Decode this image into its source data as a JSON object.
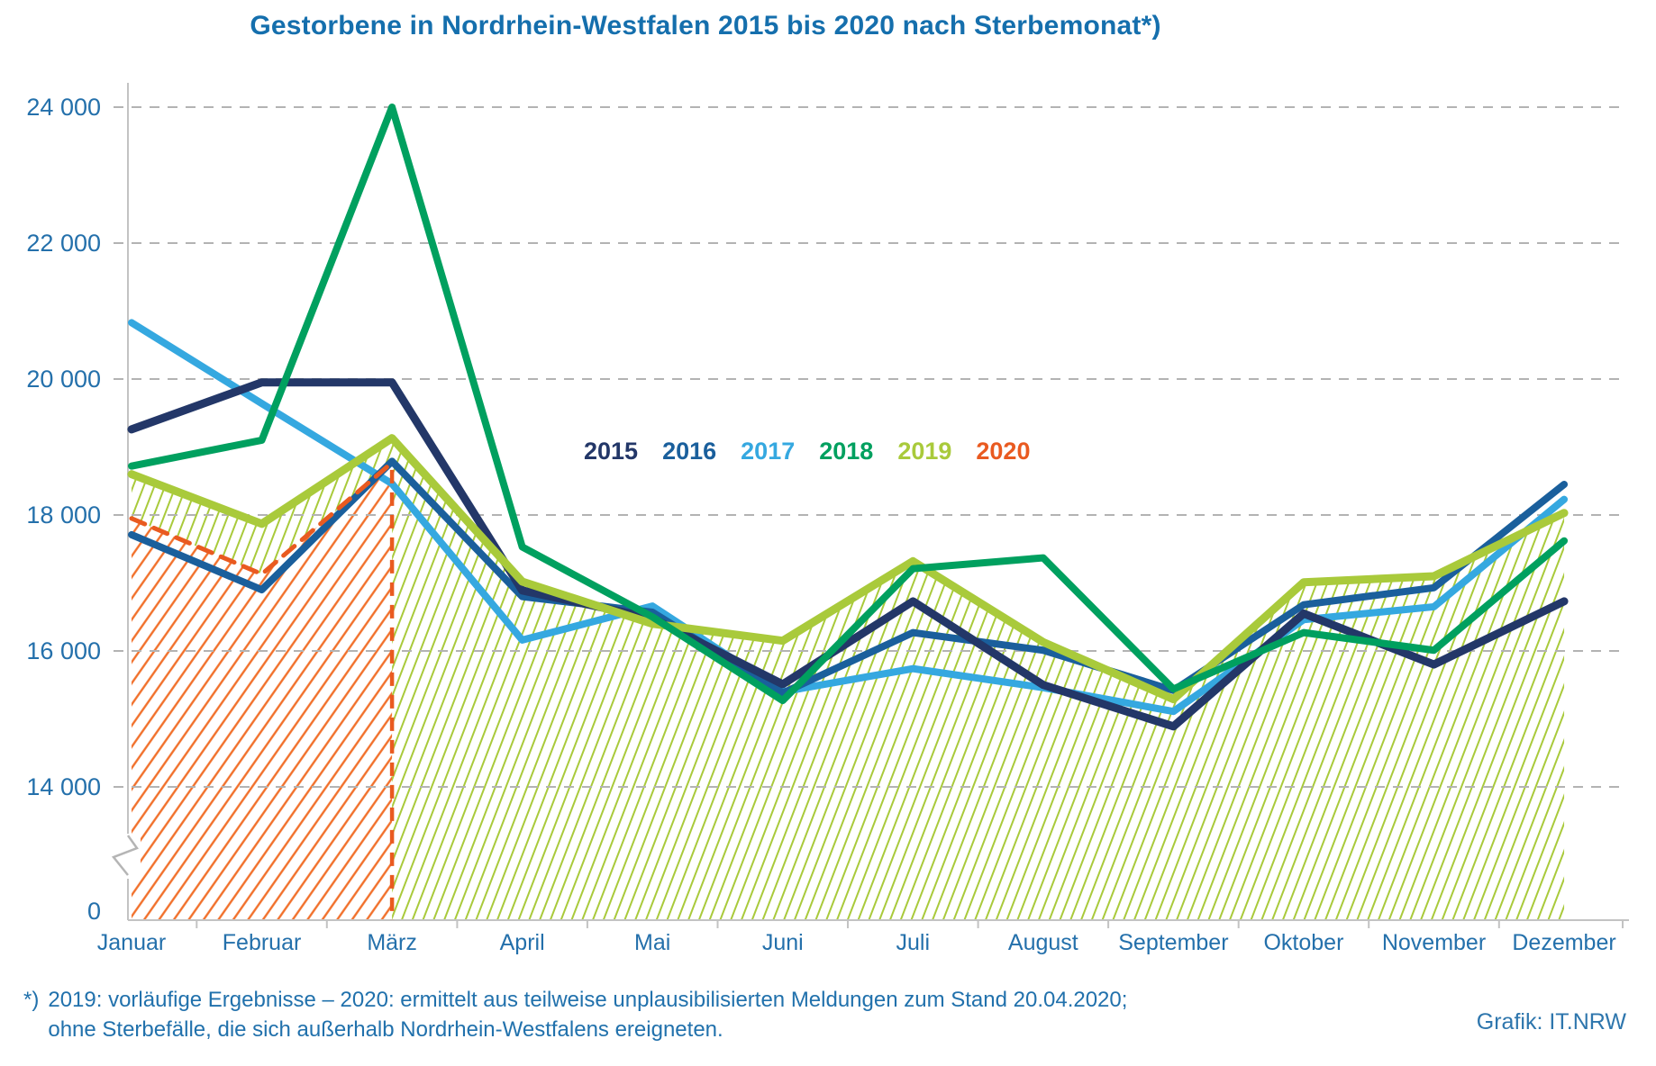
{
  "title": "Gestorbene in Nordrhein-Westfalen 2015 bis 2020 nach Sterbemonat*)",
  "footnote": {
    "marker": "*)",
    "line1": "2019: vorläufige Ergebnisse – 2020: ermittelt aus teilweise unplausibilisierten Meldungen zum Stand 20.04.2020;",
    "line2": "ohne Sterbefälle, die sich außerhalb Nordrhein-Westfalens ereigneten."
  },
  "credit": "Grafik: IT.NRW",
  "colors": {
    "text_blue": "#2470ab",
    "grid": "#b3b3b3",
    "axis": "#c3c3c3"
  },
  "chart_data": {
    "type": "line",
    "title": "Gestorbene in Nordrhein-Westfalen 2015 bis 2020 nach Sterbemonat",
    "categories": [
      "Januar",
      "Februar",
      "März",
      "April",
      "Mai",
      "Juni",
      "Juli",
      "August",
      "September",
      "Oktober",
      "November",
      "Dezember"
    ],
    "yaxis": {
      "labels": [
        {
          "text": "24 000",
          "value": 24000
        },
        {
          "text": "22 000",
          "value": 22000
        },
        {
          "text": "20 000",
          "value": 20000
        },
        {
          "text": "18 000",
          "value": 18000
        },
        {
          "text": "16 000",
          "value": 16000
        },
        {
          "text": "14 000",
          "value": 14000
        },
        {
          "text": "0",
          "value": 0
        }
      ],
      "axis_break": true,
      "ylim_top": [
        14000,
        24000
      ]
    },
    "grid": "dashed horizontal",
    "legend_position": "inside center-left",
    "series": [
      {
        "name": "2015",
        "color": "#233768",
        "values": [
          19260,
          19950,
          19950,
          16890,
          16480,
          15510,
          16730,
          15500,
          14890,
          16550,
          15800,
          16730
        ]
      },
      {
        "name": "2016",
        "color": "#1a5f9c",
        "values": [
          17710,
          16900,
          18790,
          16800,
          16570,
          15380,
          16270,
          16010,
          15420,
          16680,
          16930,
          18450
        ]
      },
      {
        "name": "2017",
        "color": "#35a8e0",
        "values": [
          20830,
          19640,
          18460,
          16160,
          16660,
          15400,
          15740,
          15460,
          15110,
          16460,
          16650,
          18230
        ]
      },
      {
        "name": "2018",
        "color": "#00a05f",
        "values": [
          18720,
          19100,
          24000,
          17530,
          16500,
          15270,
          17210,
          17370,
          15440,
          16270,
          16010,
          17620
        ]
      },
      {
        "name": "2019",
        "color": "#a9ca3b",
        "fill": "hatch-green",
        "values": [
          18600,
          17870,
          19130,
          17020,
          16400,
          16150,
          17320,
          16130,
          15290,
          17010,
          17100,
          18030
        ]
      },
      {
        "name": "2020",
        "color": "#e95a20",
        "dashed": true,
        "fill": "hatch-orange",
        "drop_line_at": "März",
        "values": [
          17950,
          17130,
          18770,
          null,
          null,
          null,
          null,
          null,
          null,
          null,
          null,
          null
        ]
      }
    ]
  }
}
